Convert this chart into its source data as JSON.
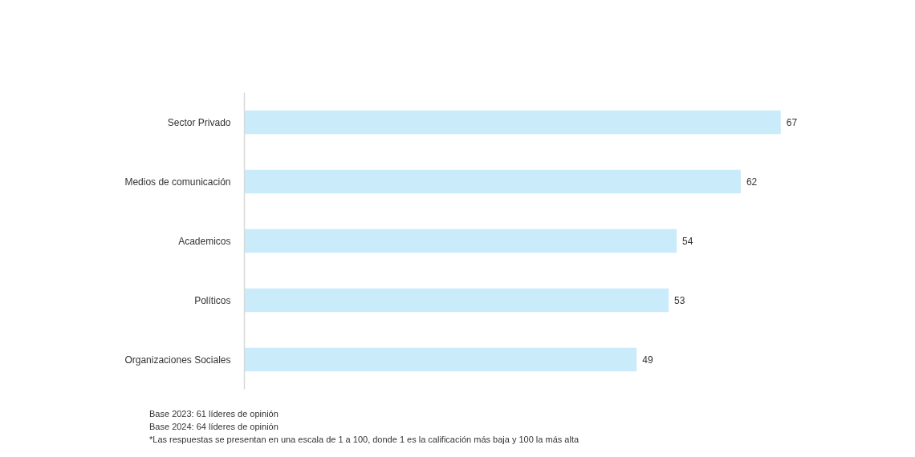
{
  "chart_data": {
    "type": "bar",
    "orientation": "horizontal",
    "categories": [
      "Sector Privado",
      "Medios de comunicación",
      "Academicos",
      "Políticos",
      "Organizaciones Sociales"
    ],
    "values": [
      67,
      62,
      54,
      53,
      49
    ],
    "color": "#caebfa",
    "data_labels": true,
    "tick_labels": "y",
    "grid": false,
    "annotations": [
      "Base 2023: 61 líderes de opinión",
      "Base 2024: 64 líderes de opinión",
      "*Las respuestas se presentan en una escala de 1 a 100, donde 1 es la calificación más baja y 100 la más alta"
    ]
  }
}
